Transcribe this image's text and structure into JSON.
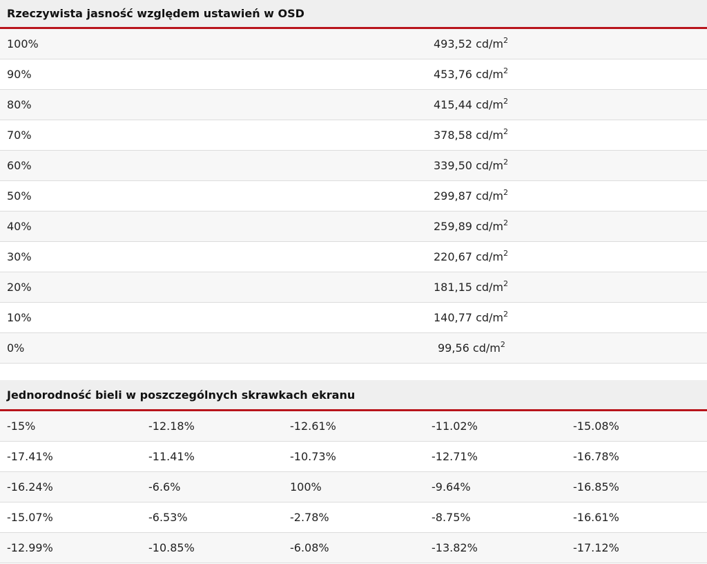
{
  "brightness": {
    "title": "Rzeczywista jasność względem ustawień w OSD",
    "unit": "cd/m",
    "unit_sup": "2",
    "rows": [
      {
        "setting": "100%",
        "value": "493,52"
      },
      {
        "setting": "90%",
        "value": "453,76"
      },
      {
        "setting": "80%",
        "value": "415,44"
      },
      {
        "setting": "70%",
        "value": "378,58"
      },
      {
        "setting": "60%",
        "value": "339,50"
      },
      {
        "setting": "50%",
        "value": "299,87"
      },
      {
        "setting": "40%",
        "value": "259,89"
      },
      {
        "setting": "30%",
        "value": "220,67"
      },
      {
        "setting": "20%",
        "value": "181,15"
      },
      {
        "setting": "10%",
        "value": "140,77"
      },
      {
        "setting": "0%",
        "value": "99,56"
      }
    ]
  },
  "uniformity": {
    "title": "Jednorodność bieli w poszczególnych skrawkach ekranu",
    "rows": [
      [
        "-15%",
        "-12.18%",
        "-12.61%",
        "-11.02%",
        "-15.08%"
      ],
      [
        "-17.41%",
        "-11.41%",
        "-10.73%",
        "-12.71%",
        "-16.78%"
      ],
      [
        "-16.24%",
        "-6.6%",
        "100%",
        "-9.64%",
        "-16.85%"
      ],
      [
        "-15.07%",
        "-6.53%",
        "-2.78%",
        "-8.75%",
        "-16.61%"
      ],
      [
        "-12.99%",
        "-10.85%",
        "-6.08%",
        "-13.82%",
        "-17.12%"
      ]
    ]
  },
  "colors": {
    "accent": "#b8141b",
    "header_bg": "#efefef",
    "row_alt_bg": "#f7f7f7",
    "divider": "#dcdcdc"
  }
}
